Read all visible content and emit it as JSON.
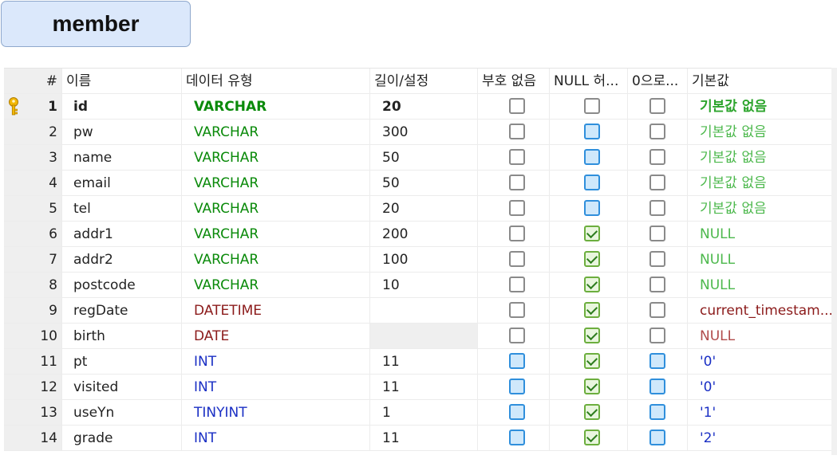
{
  "table_title": "member",
  "headers": [
    "#",
    "이름",
    "데이터 유형",
    "길이/설정",
    "부호 없음",
    "NULL 허...",
    "0으로...",
    "기본값"
  ],
  "rows": [
    {
      "num": "1",
      "name": "id",
      "type": "VARCHAR",
      "type_class": "t-green",
      "length": "20",
      "unsigned": "off",
      "null": "off",
      "zero": "off",
      "default": "기본값 없음",
      "default_class": "d-lgreen",
      "pk": true
    },
    {
      "num": "2",
      "name": "pw",
      "type": "VARCHAR",
      "type_class": "t-green",
      "length": "300",
      "unsigned": "off",
      "null": "blue",
      "zero": "off",
      "default": "기본값 없음",
      "default_class": "d-green"
    },
    {
      "num": "3",
      "name": "name",
      "type": "VARCHAR",
      "type_class": "t-green",
      "length": "50",
      "unsigned": "off",
      "null": "blue",
      "zero": "off",
      "default": "기본값 없음",
      "default_class": "d-green"
    },
    {
      "num": "4",
      "name": "email",
      "type": "VARCHAR",
      "type_class": "t-green",
      "length": "50",
      "unsigned": "off",
      "null": "blue",
      "zero": "off",
      "default": "기본값 없음",
      "default_class": "d-green"
    },
    {
      "num": "5",
      "name": "tel",
      "type": "VARCHAR",
      "type_class": "t-green",
      "length": "20",
      "unsigned": "off",
      "null": "blue",
      "zero": "off",
      "default": "기본값 없음",
      "default_class": "d-green"
    },
    {
      "num": "6",
      "name": "addr1",
      "type": "VARCHAR",
      "type_class": "t-green",
      "length": "200",
      "unsigned": "off",
      "null": "check",
      "zero": "off",
      "default": "NULL",
      "default_class": "d-green"
    },
    {
      "num": "7",
      "name": "addr2",
      "type": "VARCHAR",
      "type_class": "t-green",
      "length": "100",
      "unsigned": "off",
      "null": "check",
      "zero": "off",
      "default": "NULL",
      "default_class": "d-green"
    },
    {
      "num": "8",
      "name": "postcode",
      "type": "VARCHAR",
      "type_class": "t-green",
      "length": "10",
      "unsigned": "off",
      "null": "check",
      "zero": "off",
      "default": "NULL",
      "default_class": "d-green"
    },
    {
      "num": "9",
      "name": "regDate",
      "type": "DATETIME",
      "type_class": "t-dred",
      "length": "",
      "unsigned": "off",
      "null": "check",
      "zero": "off",
      "default": "current_timestam...",
      "default_class": "t-dred"
    },
    {
      "num": "10",
      "name": "birth",
      "type": "DATE",
      "type_class": "t-dred",
      "length": "",
      "length_empty": true,
      "unsigned": "off",
      "null": "check",
      "zero": "off",
      "default": "NULL",
      "default_class": "d-dred"
    },
    {
      "num": "11",
      "name": "pt",
      "type": "INT",
      "type_class": "t-blue",
      "length": "11",
      "unsigned": "blue",
      "null": "check",
      "zero": "blue",
      "default": "'0'",
      "default_class": "d-blue"
    },
    {
      "num": "12",
      "name": "visited",
      "type": "INT",
      "type_class": "t-blue",
      "length": "11",
      "unsigned": "blue",
      "null": "check",
      "zero": "blue",
      "default": "'0'",
      "default_class": "d-blue"
    },
    {
      "num": "13",
      "name": "useYn",
      "type": "TINYINT",
      "type_class": "t-blue",
      "length": "1",
      "unsigned": "blue",
      "null": "check",
      "zero": "blue",
      "default": "'1'",
      "default_class": "d-blue"
    },
    {
      "num": "14",
      "name": "grade",
      "type": "INT",
      "type_class": "t-blue",
      "length": "11",
      "unsigned": "blue",
      "null": "check",
      "zero": "blue",
      "default": "'2'",
      "default_class": "d-blue"
    }
  ]
}
